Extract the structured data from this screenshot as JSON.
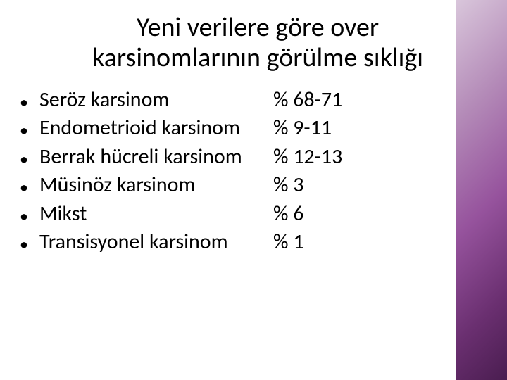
{
  "title_fontsize": 38,
  "body_fontsize": 30,
  "text_color": "#000000",
  "background_color": "#ffffff",
  "accent_gradient": [
    "#d9c6db",
    "#b48bb8",
    "#96539d",
    "#6a2f70",
    "#4a1d50"
  ],
  "title": "Yeni verilere göre over karsinomlarının görülme sıklığı",
  "items": [
    {
      "label": "Seröz karsinom",
      "value": "% 68-71"
    },
    {
      "label": "Endometrioid karsinom",
      "value": " % 9-11"
    },
    {
      "label": "Berrak hücreli karsinom",
      "value": " % 12-13"
    },
    {
      "label": "Müsinöz karsinom",
      "value": "% 3"
    },
    {
      "label": "Mikst",
      "value": " % 6"
    },
    {
      "label": "Transisyonel karsinom",
      "value": "% 1"
    }
  ]
}
